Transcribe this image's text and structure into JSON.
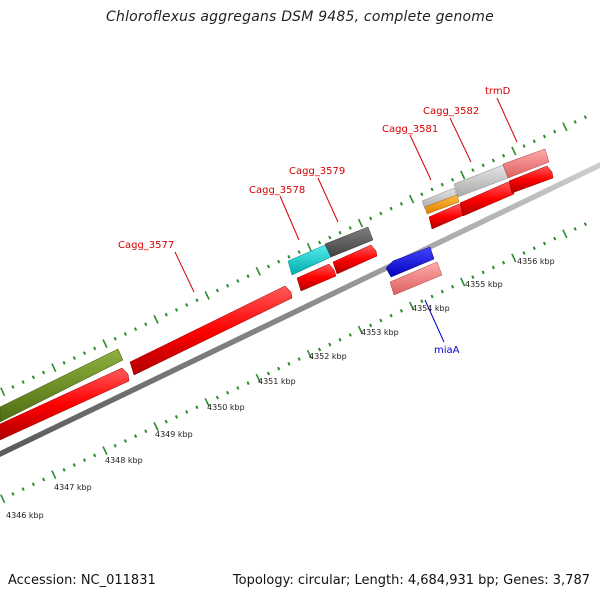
{
  "title": "Chloroflexus aggregans DSM 9485, complete genome",
  "footer": {
    "accession": "Accession: NC_011831",
    "summary": "Topology: circular; Length: 4,684,931 bp; Genes: 3,787"
  },
  "colors": {
    "cds_red": "#ff0000",
    "green": "#6b8e23",
    "cyan": "#00cccc",
    "dark_gray": "#5a5a5a",
    "light_gray": "#c8c8c8",
    "pink": "#f08080",
    "orange": "#ff9900",
    "blue": "#0000ee",
    "tick_green": "#2e8b2e",
    "backbone": "#8a8a8a"
  },
  "scale_labels": [
    "4346 kbp",
    "4347 kbp",
    "4348 kbp",
    "4349 kbp",
    "4350 kbp",
    "4351 kbp",
    "4352 kbp",
    "4353 kbp",
    "4354 kbp",
    "4355 kbp",
    "4356 kbp"
  ],
  "gene_labels": {
    "cagg_3577": "Cagg_3577",
    "cagg_3578": "Cagg_3578",
    "cagg_3579": "Cagg_3579",
    "cagg_3581": "Cagg_3581",
    "cagg_3582": "Cagg_3582",
    "trmD": "trmD",
    "miaA": "miaA"
  }
}
